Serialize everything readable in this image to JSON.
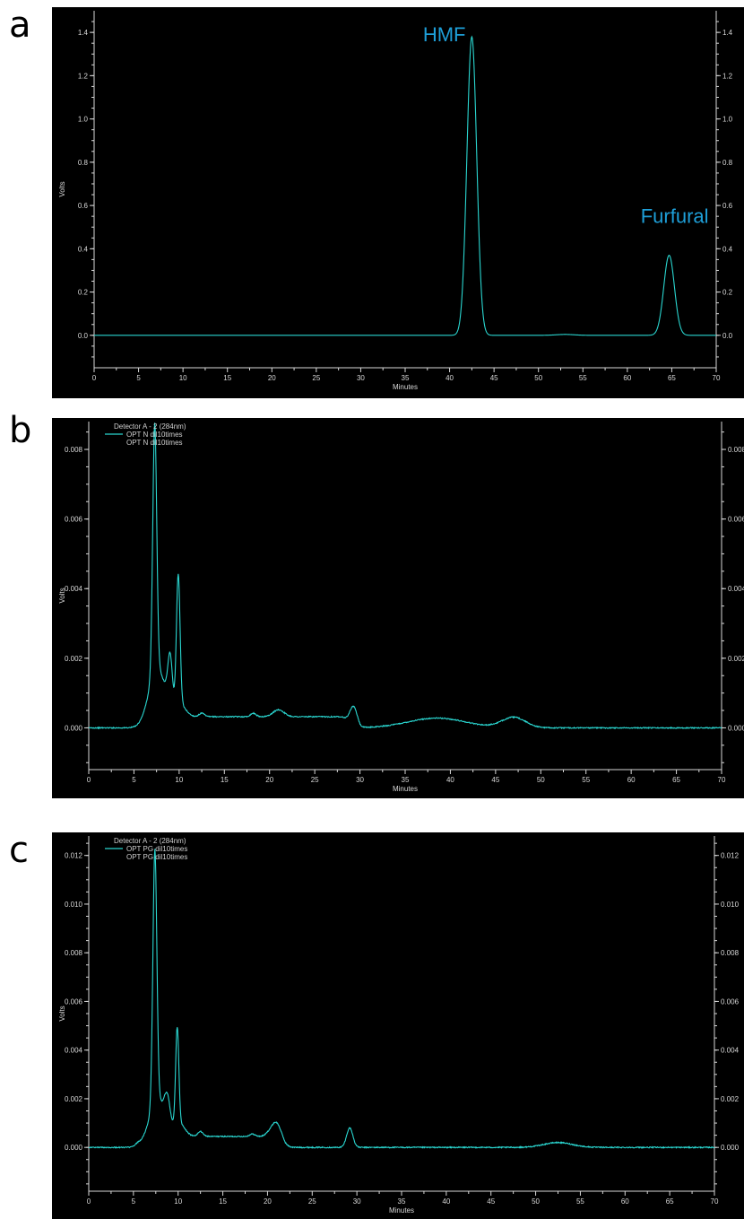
{
  "panels": [
    {
      "letter": "a"
    },
    {
      "letter": "b"
    },
    {
      "letter": "c"
    }
  ],
  "colors": {
    "background": "#000000",
    "trace": "#2ad6d0",
    "annotation": "#1e9fd8",
    "axis": "#d8d8d8"
  },
  "chart_data": [
    {
      "type": "line",
      "xlabel": "Minutes",
      "ylabel": "Volts",
      "xlim": [
        0,
        70
      ],
      "ylim": [
        -0.15,
        1.5
      ],
      "xticks": [
        "0",
        "5",
        "10",
        "15",
        "20",
        "25",
        "30",
        "35",
        "40",
        "45",
        "50",
        "55",
        "60",
        "65",
        "70"
      ],
      "yticks": [
        "0.0",
        "0.2",
        "0.4",
        "0.6",
        "0.8",
        "1.0",
        "1.2",
        "1.4"
      ],
      "yticks_right": [
        "0.0",
        "0.2",
        "0.4",
        "0.6",
        "0.8",
        "1.0",
        "1.2",
        "1.4"
      ],
      "legend": [],
      "annotations": [
        {
          "text": "HMF",
          "x": 37,
          "y": 1.36
        },
        {
          "text": "Furfural",
          "x": 61.5,
          "y": 0.52
        }
      ],
      "baseline": 0.0,
      "peaks": [
        {
          "x": 42.5,
          "height": 1.38,
          "width": 0.55
        },
        {
          "x": 53.0,
          "height": 0.004,
          "width": 1.0
        },
        {
          "x": 64.7,
          "height": 0.37,
          "width": 0.6
        }
      ]
    },
    {
      "type": "line",
      "xlabel": "Minutes",
      "ylabel": "Volts",
      "xlim": [
        0,
        70
      ],
      "ylim": [
        -0.0012,
        0.0088
      ],
      "xticks": [
        "0",
        "5",
        "10",
        "15",
        "20",
        "25",
        "30",
        "35",
        "40",
        "45",
        "50",
        "55",
        "60",
        "65",
        "70"
      ],
      "yticks": [
        "0.000",
        "0.002",
        "0.004",
        "0.006",
        "0.008"
      ],
      "yticks_right": [
        "0.000",
        "0.002",
        "0.004",
        "0.006",
        "0.008"
      ],
      "legend": [
        "Detector A - 2 (284nm)",
        "OPT N dil10times",
        "OPT N dil10times"
      ],
      "annotations": [],
      "baseline": 0.0,
      "peaks": [
        {
          "x": 7.3,
          "height": 0.0072,
          "width": 0.22
        },
        {
          "x": 7.5,
          "height": 0.0016,
          "width": 0.9
        },
        {
          "x": 9.0,
          "height": 0.0014,
          "width": 0.25
        },
        {
          "x": 9.9,
          "height": 0.0038,
          "width": 0.2
        },
        {
          "x": 10.2,
          "height": 0.0003,
          "width": 0.6
        },
        {
          "x": 12.5,
          "height": 0.0001,
          "width": 0.3
        },
        {
          "x": 18.2,
          "height": 0.0001,
          "width": 0.3
        },
        {
          "x": 21.0,
          "height": 0.0002,
          "width": 0.6
        },
        {
          "x": 29.3,
          "height": 0.0005,
          "width": 0.4
        },
        {
          "x": 38.5,
          "height": 0.00028,
          "width": 3.2
        },
        {
          "x": 47.0,
          "height": 0.0003,
          "width": 1.3
        }
      ],
      "plateau": {
        "start": 7.5,
        "end": 30,
        "level": 0.00032
      }
    },
    {
      "type": "line",
      "xlabel": "Minutes",
      "ylabel": "Volts",
      "xlim": [
        0,
        70
      ],
      "ylim": [
        -0.0018,
        0.0128
      ],
      "xticks": [
        "0",
        "5",
        "10",
        "15",
        "20",
        "25",
        "30",
        "35",
        "40",
        "45",
        "50",
        "55",
        "60",
        "65",
        "70"
      ],
      "yticks": [
        "0.000",
        "0.002",
        "0.004",
        "0.006",
        "0.008",
        "0.010",
        "0.012"
      ],
      "yticks_right": [
        "0.000",
        "0.002",
        "0.004",
        "0.006",
        "0.008",
        "0.010",
        "0.012"
      ],
      "legend": [
        "Detector A - 2 (284nm)",
        "OPT PG dil10times",
        "OPT PG dil10times"
      ],
      "annotations": [],
      "baseline": 0.0,
      "peaks": [
        {
          "x": 5.5,
          "height": 0.0001,
          "width": 0.3
        },
        {
          "x": 7.4,
          "height": 0.0105,
          "width": 0.22
        },
        {
          "x": 7.6,
          "height": 0.0018,
          "width": 0.9
        },
        {
          "x": 8.8,
          "height": 0.001,
          "width": 0.3
        },
        {
          "x": 9.9,
          "height": 0.004,
          "width": 0.18
        },
        {
          "x": 10.2,
          "height": 0.0005,
          "width": 0.6
        },
        {
          "x": 12.5,
          "height": 0.0002,
          "width": 0.3
        },
        {
          "x": 18.3,
          "height": 0.0001,
          "width": 0.3
        },
        {
          "x": 21.0,
          "height": 0.0008,
          "width": 0.6
        },
        {
          "x": 29.2,
          "height": 0.0008,
          "width": 0.35
        },
        {
          "x": 52.5,
          "height": 0.0002,
          "width": 1.6
        }
      ],
      "plateau": {
        "start": 7.5,
        "end": 22,
        "level": 0.00045
      }
    }
  ]
}
